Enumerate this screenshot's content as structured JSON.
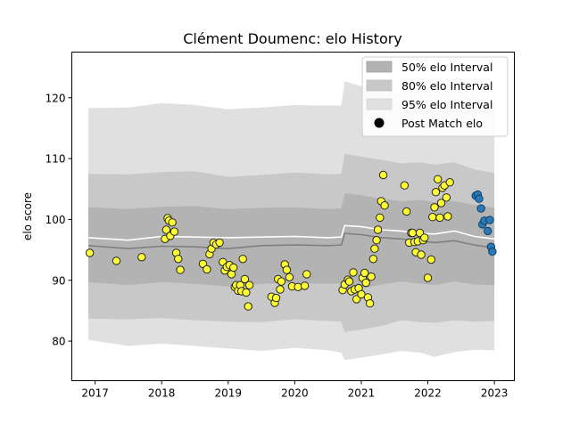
{
  "chart_data": {
    "type": "scatter",
    "title": "Clément Doumenc: elo History",
    "xlabel": "",
    "ylabel": "elo score",
    "xlim": [
      2016.65,
      2023.3
    ],
    "ylim": [
      73.5,
      127.5
    ],
    "x_ticks": [
      2017,
      2018,
      2019,
      2020,
      2021,
      2022,
      2023
    ],
    "x_tick_labels": [
      "2017",
      "2018",
      "2019",
      "2020",
      "2021",
      "2022",
      "2023"
    ],
    "y_ticks": [
      80,
      90,
      100,
      110,
      120
    ],
    "y_tick_labels": [
      "80",
      "90",
      "100",
      "110",
      "120"
    ],
    "legend": {
      "placement": "top-right",
      "entries": [
        {
          "label": "50% elo Interval",
          "color": "#b3b3b3",
          "kind": "patch"
        },
        {
          "label": "80% elo Interval",
          "color": "#c8c8c8",
          "kind": "patch"
        },
        {
          "label": "95% elo Interval",
          "color": "#e0e0e0",
          "kind": "patch"
        },
        {
          "label": "Post Match elo",
          "color": "#000000",
          "kind": "marker"
        }
      ]
    },
    "bands": {
      "x": [
        2016.9,
        2017.5,
        2018.0,
        2018.5,
        2019.0,
        2019.5,
        2020.0,
        2020.5,
        2020.7,
        2020.75,
        2021.0,
        2021.3,
        2021.6,
        2021.9,
        2022.1,
        2022.4,
        2022.7,
        2023.0
      ],
      "mean": [
        95.7,
        95.2,
        95.6,
        95.5,
        95.2,
        95.7,
        95.8,
        95.7,
        95.8,
        97.7,
        97.5,
        97.0,
        96.8,
        96.4,
        96.2,
        96.5,
        95.8,
        95.3
      ],
      "median": [
        97.0,
        96.6,
        97.2,
        97.1,
        97.0,
        97.1,
        97.2,
        97.0,
        97.1,
        99.0,
        98.8,
        98.3,
        98.1,
        97.7,
        97.6,
        98.1,
        97.2,
        96.8
      ],
      "p50_low": [
        89.7,
        89.2,
        89.7,
        89.4,
        89.0,
        89.4,
        89.6,
        89.4,
        89.5,
        88.3,
        88.6,
        89.3,
        89.8,
        89.4,
        89.2,
        89.8,
        89.3,
        89.2
      ],
      "p50_high": [
        102.0,
        101.7,
        102.1,
        102.2,
        101.7,
        101.9,
        102.0,
        101.7,
        101.8,
        104.3,
        104.0,
        103.4,
        103.0,
        103.2,
        102.8,
        103.0,
        102.4,
        101.9
      ],
      "p80_low": [
        83.7,
        83.6,
        83.8,
        83.4,
        83.2,
        83.1,
        83.6,
        83.3,
        83.2,
        81.5,
        81.9,
        82.5,
        83.4,
        83.1,
        83.0,
        83.4,
        83.2,
        83.3
      ],
      "p80_high": [
        107.5,
        107.4,
        107.8,
        107.9,
        107.0,
        107.3,
        107.7,
        107.4,
        107.5,
        110.8,
        110.3,
        109.8,
        109.2,
        109.4,
        109.0,
        109.4,
        108.2,
        107.6
      ],
      "p95_low": [
        80.2,
        79.2,
        79.6,
        79.2,
        78.8,
        78.4,
        78.9,
        78.5,
        78.1,
        76.9,
        77.3,
        77.8,
        78.4,
        78.1,
        77.4,
        78.2,
        78.6,
        78.5
      ],
      "p95_high": [
        118.3,
        118.4,
        119.1,
        118.8,
        118.1,
        118.4,
        118.8,
        118.7,
        118.7,
        122.7,
        121.9,
        121.3,
        120.8,
        121.2,
        120.6,
        121.2,
        120.3,
        119.1
      ]
    },
    "series": [
      {
        "name": "Post Match elo",
        "color": "#ffff33",
        "x": [
          2016.92,
          2017.32,
          2017.7,
          2018.05,
          2018.07,
          2018.09,
          2018.11,
          2018.13,
          2018.16,
          2018.19,
          2018.22,
          2018.25,
          2018.28,
          2018.62,
          2018.68,
          2018.72,
          2018.75,
          2018.78,
          2018.82,
          2018.87,
          2018.92,
          2018.95,
          2018.98,
          2019.02,
          2019.05,
          2019.08,
          2019.1,
          2019.12,
          2019.15,
          2019.18,
          2019.2,
          2019.22,
          2019.25,
          2019.27,
          2019.3,
          2019.32,
          2019.65,
          2019.7,
          2019.72,
          2019.75,
          2019.78,
          2019.8,
          2019.85,
          2019.88,
          2019.92,
          2019.96,
          2020.05,
          2020.15,
          2020.18,
          2020.72,
          2020.75,
          2020.8,
          2020.82,
          2020.85,
          2020.88,
          2020.9,
          2020.93,
          2020.96,
          2021.0,
          2021.02,
          2021.05,
          2021.07,
          2021.1,
          2021.13,
          2021.15,
          2021.18,
          2021.2,
          2021.23,
          2021.25,
          2021.28,
          2021.3,
          2021.33,
          2021.35,
          2021.65,
          2021.68,
          2021.72,
          2021.75,
          2021.77,
          2021.8,
          2021.82,
          2021.85,
          2021.88,
          2021.9,
          2021.93,
          2021.95,
          2022.0,
          2022.05,
          2022.07,
          2022.1,
          2022.12,
          2022.15,
          2022.18,
          2022.2,
          2022.22,
          2022.25,
          2022.28,
          2022.3,
          2022.33
        ],
        "y": [
          94.5,
          93.2,
          93.8,
          96.8,
          98.3,
          100.2,
          99.8,
          97.3,
          99.5,
          98.0,
          94.5,
          93.5,
          91.7,
          92.7,
          91.8,
          94.3,
          95.2,
          96.2,
          95.9,
          96.2,
          93.0,
          91.6,
          92.2,
          92.5,
          91.0,
          92.1,
          88.9,
          89.2,
          88.3,
          89.2,
          88.2,
          93.5,
          90.2,
          88.0,
          85.7,
          89.2,
          87.3,
          86.3,
          87.1,
          90.2,
          88.5,
          89.8,
          92.6,
          91.7,
          90.5,
          89.0,
          88.9,
          89.1,
          91.0,
          88.4,
          89.3,
          90.1,
          89.8,
          88.2,
          91.3,
          88.5,
          86.9,
          88.7,
          87.7,
          90.4,
          91.2,
          89.6,
          87.2,
          86.2,
          90.6,
          93.5,
          95.2,
          96.6,
          98.3,
          100.3,
          103.0,
          107.3,
          102.3,
          105.6,
          101.3,
          96.2,
          97.8,
          97.8,
          96.3,
          94.6,
          96.4,
          97.8,
          94.2,
          96.6,
          97.0,
          90.4,
          93.4,
          100.4,
          102.0,
          104.5,
          106.6,
          100.3,
          102.7,
          105.2,
          105.6,
          103.6,
          100.5,
          106.1
        ]
      },
      {
        "name": "",
        "color": "#2a7ab8",
        "x": [
          2022.72,
          2022.75,
          2022.77,
          2022.8,
          2022.82,
          2022.85,
          2022.9,
          2022.93,
          2022.95,
          2022.97
        ],
        "y": [
          103.9,
          104.1,
          103.4,
          101.8,
          99.2,
          99.8,
          98.1,
          99.9,
          95.5,
          94.7
        ]
      }
    ]
  }
}
